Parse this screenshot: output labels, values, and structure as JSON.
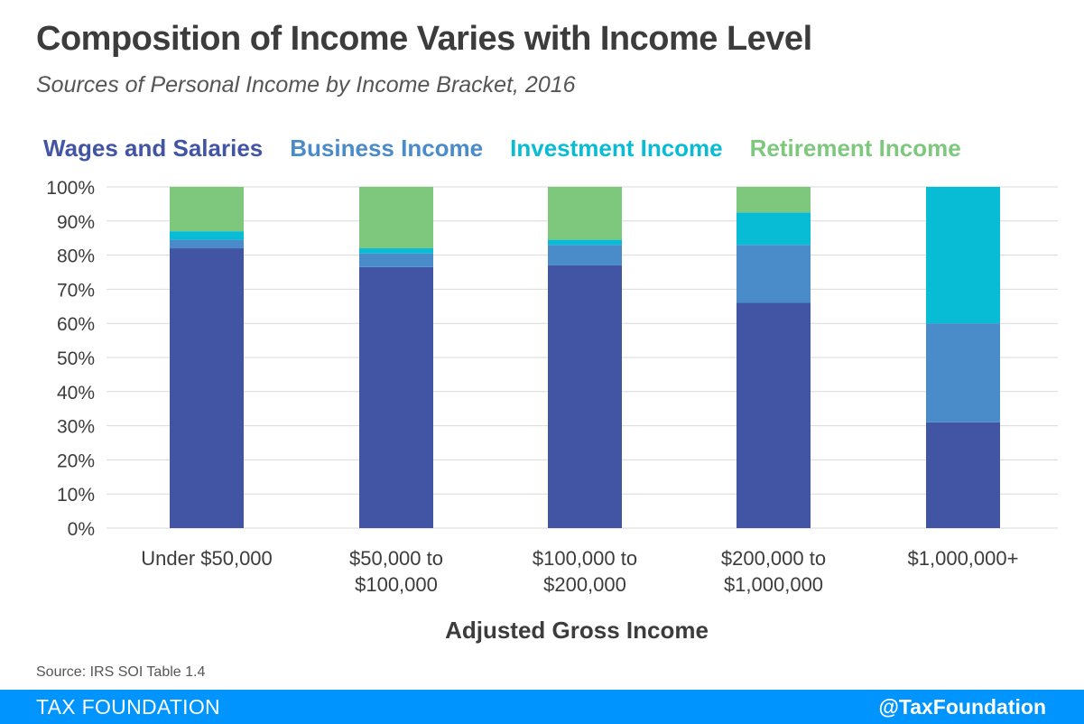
{
  "chart_data": {
    "type": "bar",
    "stacked": true,
    "title": "Composition of Income Varies with Income Level",
    "subtitle": "Sources of Personal Income by Income Bracket, 2016",
    "xlabel": "Adjusted Gross Income",
    "ylabel": "",
    "ylim": [
      0,
      100
    ],
    "yticks": [
      "0%",
      "10%",
      "20%",
      "30%",
      "40%",
      "50%",
      "60%",
      "70%",
      "80%",
      "90%",
      "100%"
    ],
    "grid": true,
    "legend_position": "top",
    "categories": [
      [
        "Under $50,000"
      ],
      [
        "$50,000 to",
        "$100,000"
      ],
      [
        "$100,000 to",
        "$200,000"
      ],
      [
        "$200,000 to",
        "$1,000,000"
      ],
      [
        "$1,000,000+"
      ]
    ],
    "series": [
      {
        "name": "Wages and Salaries",
        "color": "#4254a4",
        "values": [
          82,
          76.5,
          77,
          66,
          31
        ]
      },
      {
        "name": "Business Income",
        "color": "#4a8cca",
        "values": [
          2.5,
          4,
          6,
          17,
          29
        ]
      },
      {
        "name": "Investment Income",
        "color": "#08bcd6",
        "values": [
          2.5,
          1.5,
          1.5,
          9.5,
          40
        ]
      },
      {
        "name": "Retirement Income",
        "color": "#7ec87e",
        "values": [
          13,
          18,
          15.5,
          7.5,
          0
        ]
      }
    ],
    "source": "Source: IRS SOI Table 1.4"
  },
  "footer": {
    "left": "TAX FOUNDATION",
    "right": "@TaxFoundation"
  }
}
